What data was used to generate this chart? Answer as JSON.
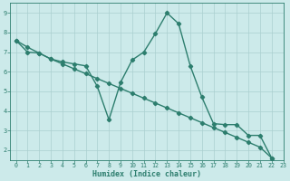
{
  "line1_x": [
    0,
    1,
    2,
    3,
    4,
    5,
    6,
    7,
    8,
    9,
    10,
    11,
    12,
    13,
    14,
    15,
    16,
    17,
    18,
    19,
    20,
    21,
    22
  ],
  "line1_y": [
    7.6,
    7.0,
    6.95,
    6.65,
    6.5,
    6.4,
    6.3,
    5.25,
    3.55,
    5.45,
    6.6,
    7.0,
    7.95,
    9.0,
    8.45,
    6.3,
    4.7,
    3.35,
    3.3,
    3.3,
    2.75,
    2.75,
    1.6
  ],
  "line2_x": [
    0,
    1,
    2,
    3,
    4,
    5,
    6,
    7,
    8,
    9,
    10,
    11,
    12,
    13,
    14,
    15,
    16,
    17,
    18,
    19,
    20,
    21,
    22
  ],
  "line2_y": [
    7.6,
    7.25,
    6.95,
    6.65,
    6.4,
    6.15,
    5.9,
    5.65,
    5.4,
    5.15,
    4.9,
    4.65,
    4.4,
    4.15,
    3.9,
    3.65,
    3.4,
    3.15,
    2.9,
    2.65,
    2.4,
    2.15,
    1.6
  ],
  "color": "#2d7e6e",
  "bg_color": "#cceaea",
  "grid_color": "#aacfcf",
  "xlabel": "Humidex (Indice chaleur)",
  "ylim": [
    1.5,
    9.5
  ],
  "xlim": [
    -0.5,
    23.0
  ],
  "yticks": [
    2,
    3,
    4,
    5,
    6,
    7,
    8,
    9
  ],
  "xticks": [
    0,
    1,
    2,
    3,
    4,
    5,
    6,
    7,
    8,
    9,
    10,
    11,
    12,
    13,
    14,
    15,
    16,
    17,
    18,
    19,
    20,
    21,
    22,
    23
  ],
  "marker": "D",
  "markersize": 2.2,
  "linewidth": 1.0
}
